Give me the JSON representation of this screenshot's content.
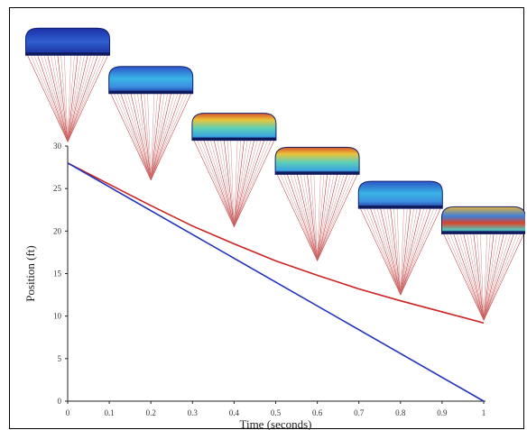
{
  "chart_data": {
    "type": "line",
    "title": "",
    "xlabel": "Time (seconds)",
    "ylabel": "Position (ft)",
    "xlim": [
      0,
      1
    ],
    "ylim": [
      0,
      30
    ],
    "x_ticks": [
      "0",
      "0.1",
      "0.2",
      "0.3",
      "0.4",
      "0.5",
      "0.6",
      "0.7",
      "0.8",
      "0.9",
      "1"
    ],
    "y_ticks": [
      "0",
      "5",
      "10",
      "15",
      "20",
      "25",
      "30"
    ],
    "grid": false,
    "legend": "none",
    "series": [
      {
        "color": "#cc2222",
        "x": [
          0,
          0.1,
          0.2,
          0.3,
          0.4,
          0.5,
          0.6,
          0.7,
          0.8,
          0.9,
          1.0
        ],
        "y": [
          28,
          25.5,
          23.0,
          20.6,
          18.5,
          16.5,
          14.8,
          13.2,
          11.8,
          10.5,
          9.2
        ]
      },
      {
        "color": "#2233bb",
        "x": [
          0,
          1
        ],
        "y": [
          28,
          0
        ]
      }
    ],
    "parachutes": [
      {
        "t": 0.0,
        "pos": 30.5,
        "scheme": "deep-blue"
      },
      {
        "t": 0.2,
        "pos": 26.0,
        "scheme": "blue-cyan"
      },
      {
        "t": 0.4,
        "pos": 20.5,
        "scheme": "cyan-yellow"
      },
      {
        "t": 0.6,
        "pos": 16.5,
        "scheme": "cyan-yellow"
      },
      {
        "t": 0.8,
        "pos": 12.5,
        "scheme": "blue-cyan"
      },
      {
        "t": 1.0,
        "pos": 9.5,
        "scheme": "mixed-red"
      }
    ]
  }
}
